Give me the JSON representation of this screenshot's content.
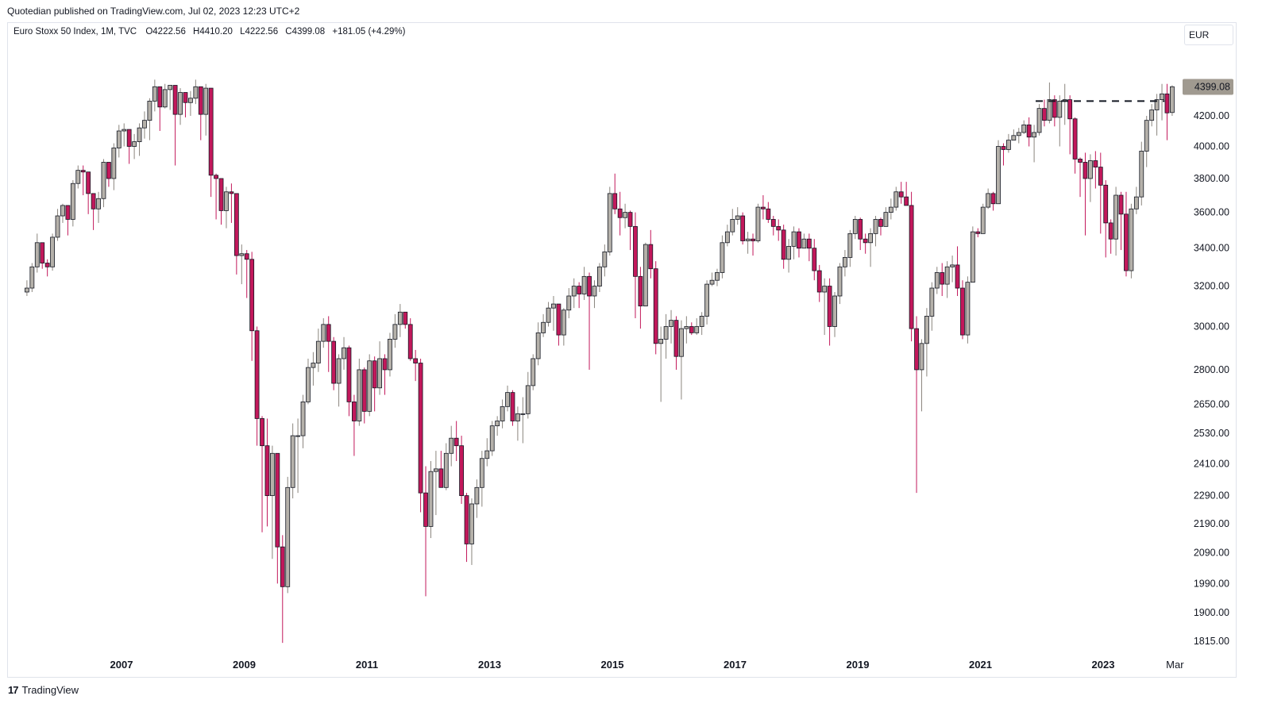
{
  "header": {
    "published": "Quotedian published on TradingView.com, Jul 02, 2023 12:23 UTC+2"
  },
  "legend": {
    "symbol": "Euro Stoxx 50 Index, 1M, TVC",
    "open": "O4222.56",
    "high": "H4410.20",
    "low": "L4222.56",
    "close": "C4399.08",
    "change": "+181.05 (+4.29%)"
  },
  "currency": "EUR",
  "footer": {
    "brand": "TradingView"
  },
  "colors": {
    "up": "#b5b1aa",
    "down": "#c2185b",
    "outline": "#131722",
    "label_bg": "#a09a90"
  },
  "chart_data": {
    "type": "candlestick",
    "interval": "1M",
    "y_scale": "log",
    "y_ticks": [
      1815,
      1900,
      1990,
      2090,
      2190,
      2290,
      2410,
      2530,
      2650,
      2800,
      3000,
      3200,
      3400,
      3600,
      3800,
      4000,
      4200
    ],
    "y_tick_labels": [
      "1815.00",
      "1900.00",
      "1990.00",
      "2090.00",
      "2190.00",
      "2290.00",
      "2410.00",
      "2530.00",
      "2650.00",
      "2800.00",
      "3000.00",
      "3200.00",
      "3400.00",
      "3600.00",
      "3800.00",
      "4000.00",
      "4200.00"
    ],
    "x_tick_labels": [
      "2007",
      "2009",
      "2011",
      "2013",
      "2015",
      "2017",
      "2019",
      "2021",
      "2023",
      "Mar"
    ],
    "x_tick_years": [
      2007,
      2009,
      2011,
      2013,
      2015,
      2017,
      2019,
      2021,
      2023,
      2024.17
    ],
    "last_price_label": "4399.08",
    "last_price": 4399.08,
    "resistance_level": 4300,
    "start": "2005-06",
    "closes": [
      3190,
      3300,
      3430,
      3320,
      3300,
      3460,
      3580,
      3640,
      3560,
      3770,
      3850,
      3840,
      3710,
      3620,
      3680,
      3900,
      3800,
      3990,
      4100,
      4110,
      4000,
      4030,
      4120,
      4170,
      4300,
      4400,
      4260,
      4380,
      4410,
      4210,
      4360,
      4290,
      4320,
      4400,
      4210,
      4390,
      3820,
      3800,
      3610,
      3720,
      3710,
      3360,
      3370,
      3340,
      2980,
      2590,
      2480,
      2290,
      2450,
      2110,
      1980,
      2320,
      2520,
      2520,
      2660,
      2810,
      2830,
      2930,
      3010,
      2930,
      2740,
      2850,
      2900,
      2660,
      2580,
      2800,
      2620,
      2840,
      2720,
      2850,
      2800,
      2940,
      3010,
      3070,
      3010,
      2850,
      2830,
      2300,
      2180,
      2380,
      2390,
      2320,
      2450,
      2510,
      2480,
      2290,
      2120,
      2260,
      2320,
      2430,
      2460,
      2560,
      2580,
      2640,
      2700,
      2580,
      2610,
      2610,
      2730,
      2850,
      2970,
      3020,
      3090,
      3110,
      2960,
      3080,
      3150,
      3200,
      3160,
      3250,
      3150,
      3200,
      3300,
      3380,
      3710,
      3620,
      3570,
      3600,
      3520,
      3250,
      3100,
      3420,
      3290,
      2920,
      2940,
      3000,
      3030,
      2860,
      2990,
      3000,
      2970,
      3000,
      3050,
      3210,
      3230,
      3270,
      3430,
      3490,
      3560,
      3580,
      3440,
      3450,
      3440,
      3630,
      3620,
      3560,
      3520,
      3500,
      3340,
      3410,
      3490,
      3400,
      3450,
      3400,
      3280,
      3170,
      3200,
      3000,
      3150,
      3300,
      3350,
      3480,
      3560,
      3450,
      3430,
      3480,
      3560,
      3520,
      3600,
      3630,
      3720,
      3690,
      3640,
      2990,
      2800,
      2920,
      3050,
      3190,
      3270,
      3210,
      3300,
      3310,
      3190,
      2960,
      3220,
      3490,
      3480,
      3630,
      3710,
      3650,
      4000,
      3980,
      4040,
      4070,
      4090,
      4140,
      4060,
      4090,
      4250,
      4170,
      4310,
      4190,
      4300,
      4310,
      4180,
      3920,
      3900,
      3800,
      3910,
      3870,
      3760,
      3540,
      3450,
      3700,
      3590,
      3280,
      3620,
      3690,
      3970,
      4170,
      4240,
      4310,
      4350,
      4220,
      4400
    ],
    "highs": [
      3230,
      3320,
      3480,
      3350,
      3340,
      3480,
      3620,
      3650,
      3590,
      3790,
      3880,
      3880,
      3740,
      3680,
      3720,
      3920,
      3860,
      4020,
      4140,
      4150,
      4050,
      4080,
      4150,
      4230,
      4320,
      4450,
      4290,
      4420,
      4410,
      4250,
      4390,
      4350,
      4370,
      4450,
      4400,
      4420,
      4050,
      3830,
      3730,
      3750,
      3770,
      3710,
      3420,
      3390,
      3380,
      3000,
      2600,
      2590,
      2480,
      2450,
      2150,
      2360,
      2570,
      2590,
      2690,
      2850,
      2880,
      2990,
      3040,
      3050,
      2950,
      2870,
      2950,
      2910,
      2690,
      2850,
      2810,
      2870,
      2860,
      2930,
      2870,
      2970,
      3060,
      3110,
      3060,
      3040,
      2890,
      2850,
      2400,
      2420,
      2460,
      2460,
      2490,
      2560,
      2580,
      2520,
      2300,
      2280,
      2350,
      2460,
      2510,
      2580,
      2600,
      2670,
      2730,
      2710,
      2640,
      2680,
      2790,
      2870,
      3020,
      3060,
      3120,
      3150,
      3110,
      3090,
      3190,
      3240,
      3220,
      3300,
      3270,
      3230,
      3320,
      3420,
      3750,
      3830,
      3720,
      3650,
      3610,
      3600,
      3300,
      3430,
      3500,
      3330,
      3000,
      3060,
      3080,
      3050,
      3030,
      3050,
      3020,
      3040,
      3070,
      3230,
      3270,
      3290,
      3470,
      3530,
      3620,
      3630,
      3600,
      3490,
      3480,
      3650,
      3700,
      3660,
      3580,
      3560,
      3530,
      3450,
      3520,
      3510,
      3480,
      3480,
      3450,
      3310,
      3240,
      3240,
      3170,
      3320,
      3390,
      3500,
      3580,
      3570,
      3480,
      3510,
      3580,
      3570,
      3630,
      3680,
      3750,
      3780,
      3780,
      3720,
      3050,
      2940,
      3090,
      3220,
      3300,
      3320,
      3330,
      3360,
      3410,
      3230,
      3250,
      3520,
      3510,
      3650,
      3740,
      3720,
      4040,
      4020,
      4080,
      4110,
      4120,
      4170,
      4190,
      4140,
      4280,
      4310,
      4430,
      4340,
      4340,
      4420,
      4340,
      4190,
      3930,
      3960,
      3950,
      3970,
      3960,
      3790,
      3560,
      3750,
      3720,
      3720,
      3650,
      3750,
      4030,
      4200,
      4280,
      4350,
      4420,
      4420,
      4410
    ],
    "lows": [
      3150,
      3170,
      3270,
      3290,
      3250,
      3280,
      3440,
      3540,
      3470,
      3520,
      3740,
      3700,
      3590,
      3500,
      3540,
      3630,
      3750,
      3730,
      3930,
      4000,
      3890,
      3920,
      3940,
      4050,
      4040,
      4230,
      4100,
      4250,
      4240,
      3880,
      4140,
      4190,
      4200,
      4280,
      4040,
      4070,
      3690,
      3560,
      3530,
      3510,
      3540,
      3260,
      3210,
      3140,
      2840,
      2480,
      2160,
      2180,
      2070,
      1990,
      1810,
      1960,
      2280,
      2300,
      2470,
      2650,
      2730,
      2790,
      2900,
      2790,
      2710,
      2640,
      2800,
      2600,
      2440,
      2560,
      2570,
      2600,
      2620,
      2690,
      2690,
      2770,
      2900,
      2950,
      2990,
      2840,
      2750,
      2230,
      1950,
      2140,
      2220,
      2320,
      2310,
      2400,
      2420,
      2260,
      2060,
      2050,
      2210,
      2250,
      2400,
      2440,
      2520,
      2550,
      2620,
      2560,
      2500,
      2490,
      2590,
      2710,
      2820,
      2950,
      3000,
      2980,
      2910,
      2910,
      3040,
      3090,
      3090,
      3130,
      2800,
      3090,
      3170,
      3250,
      3360,
      3590,
      3470,
      3510,
      3390,
      3040,
      2990,
      3100,
      3240,
      2870,
      2660,
      2850,
      2920,
      2800,
      2670,
      2920,
      2960,
      2960,
      2960,
      3010,
      3200,
      3200,
      3240,
      3410,
      3470,
      3530,
      3420,
      3370,
      3360,
      3430,
      3560,
      3540,
      3470,
      3440,
      3290,
      3270,
      3340,
      3350,
      3400,
      3330,
      3230,
      3120,
      2960,
      2910,
      2950,
      3110,
      3250,
      3300,
      3450,
      3390,
      3370,
      3300,
      3410,
      3470,
      3520,
      3560,
      3610,
      3650,
      3640,
      2930,
      2300,
      2620,
      2770,
      2980,
      3160,
      3150,
      3140,
      3220,
      3150,
      2940,
      2920,
      3220,
      3460,
      3480,
      3620,
      3610,
      3870,
      3880,
      3960,
      4050,
      4020,
      4080,
      4000,
      3900,
      4070,
      4130,
      4150,
      4130,
      4000,
      4140,
      3950,
      3830,
      3690,
      3470,
      3660,
      3740,
      3480,
      3350,
      3370,
      3360,
      3390,
      3250,
      3240,
      3590,
      3640,
      3870,
      4130,
      4070,
      4170,
      4040,
      4200,
      4222.56
    ],
    "opens_rule": "each month opens at the previous month's close; first candle opens at 3170; final candle opens at 4222.56"
  }
}
